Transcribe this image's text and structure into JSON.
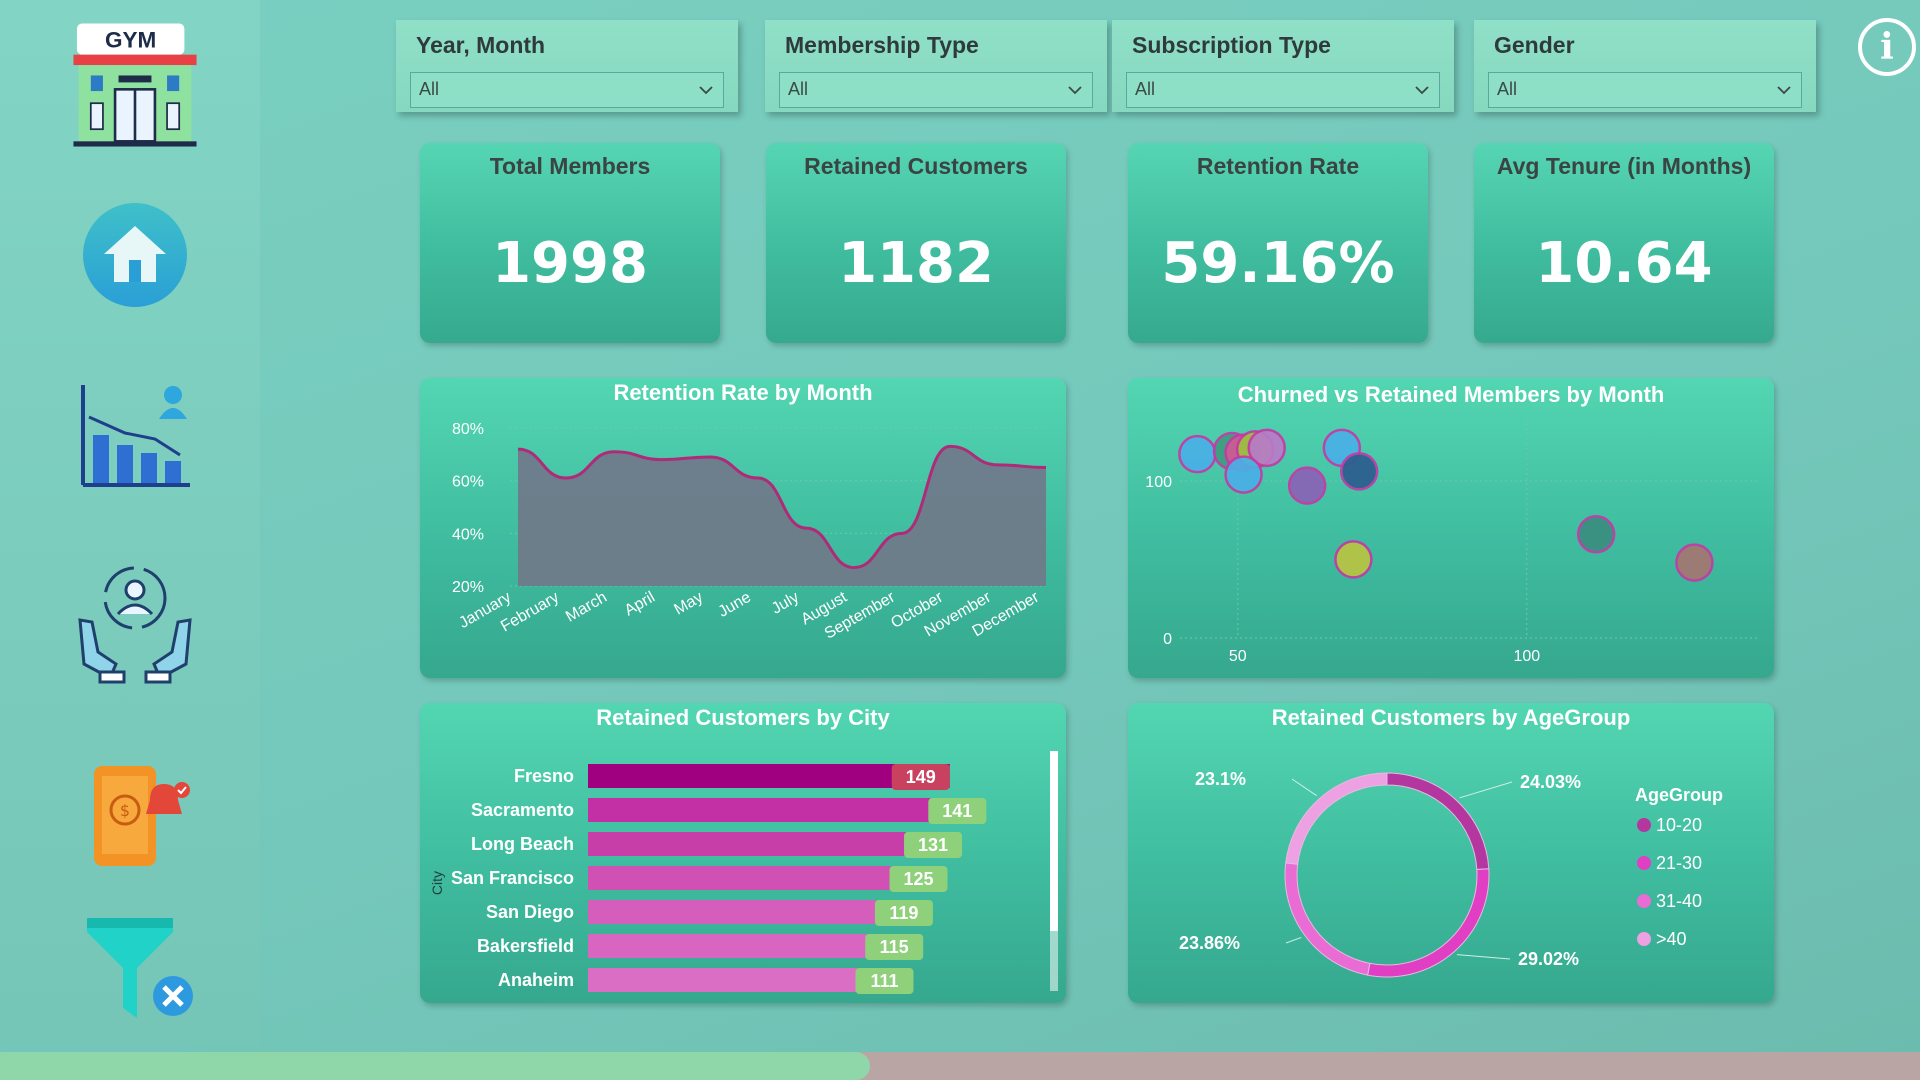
{
  "sidebar": {
    "logo_text": "GYM",
    "items": [
      {
        "icon": "home-icon"
      },
      {
        "icon": "analytics-chart-icon"
      },
      {
        "icon": "retention-hands-icon"
      },
      {
        "icon": "payment-phone-icon"
      },
      {
        "icon": "clear-filter-icon"
      }
    ]
  },
  "filters": [
    {
      "label": "Year, Month",
      "value": "All"
    },
    {
      "label": "Membership Type",
      "value": "All"
    },
    {
      "label": "Subscription Type",
      "value": "All"
    },
    {
      "label": "Gender",
      "value": "All"
    }
  ],
  "kpis": [
    {
      "label": "Total Members",
      "value": "1998"
    },
    {
      "label": "Retained Customers",
      "value": "1182"
    },
    {
      "label": "Retention Rate",
      "value": "59.16%"
    },
    {
      "label": "Avg Tenure (in Months)",
      "value": "10.64"
    }
  ],
  "info_icon": "info-icon",
  "colors": {
    "accent_teal": "#3fbc9e",
    "magenta": "#a0007f",
    "pink": "#d466c5",
    "line": "#b02a7a"
  },
  "chart_data": [
    {
      "type": "area",
      "title": "Retention Rate by Month",
      "categories": [
        "January",
        "February",
        "March",
        "April",
        "May",
        "June",
        "July",
        "August",
        "September",
        "October",
        "November",
        "December"
      ],
      "values": [
        72,
        61,
        71,
        68,
        69,
        61,
        42,
        27,
        40,
        73,
        66,
        65
      ],
      "yticks": [
        "80%",
        "60%",
        "40%",
        "20%"
      ],
      "ylim": [
        20,
        80
      ]
    },
    {
      "type": "scatter",
      "title": "Churned vs Retained Members by Month",
      "xticks": [
        "50",
        "100"
      ],
      "yticks": [
        "100",
        "0"
      ],
      "xlim": [
        40,
        140
      ],
      "ylim": [
        0,
        140
      ],
      "points": [
        {
          "x": 43,
          "y": 117,
          "color": "#4ab0e6"
        },
        {
          "x": 49,
          "y": 119,
          "color": "#3e9c7f"
        },
        {
          "x": 51,
          "y": 118,
          "color": "#d05a94"
        },
        {
          "x": 53,
          "y": 120,
          "color": "#9bc23e"
        },
        {
          "x": 55,
          "y": 121,
          "color": "#b87bc8"
        },
        {
          "x": 51,
          "y": 104,
          "color": "#4ab0e6"
        },
        {
          "x": 62,
          "y": 97,
          "color": "#8a63b7"
        },
        {
          "x": 68,
          "y": 121,
          "color": "#4ab0e6"
        },
        {
          "x": 71,
          "y": 106,
          "color": "#2c5d8f"
        },
        {
          "x": 70,
          "y": 50,
          "color": "#b8c440"
        },
        {
          "x": 112,
          "y": 66,
          "color": "#3b8e7f"
        },
        {
          "x": 129,
          "y": 48,
          "color": "#a47671"
        }
      ]
    },
    {
      "type": "bar",
      "title": "Retained Customers by City",
      "ylabel": "City",
      "categories": [
        "Fresno",
        "Sacramento",
        "Long Beach",
        "San Francisco",
        "San Diego",
        "Bakersfield",
        "Anaheim"
      ],
      "values": [
        149,
        141,
        131,
        125,
        119,
        115,
        111
      ],
      "xlim": [
        0,
        160
      ]
    },
    {
      "type": "pie",
      "title": "Retained Customers by AgeGroup",
      "legend_title": "AgeGroup",
      "labels": [
        "10-20",
        "21-30",
        "31-40",
        ">40"
      ],
      "values": [
        24.03,
        29.02,
        23.86,
        23.1
      ],
      "value_labels": [
        "24.03%",
        "29.02%",
        "23.86%",
        "23.1%"
      ],
      "colors": [
        "#b3379f",
        "#e03fc3",
        "#e96bd4",
        "#eda0e2"
      ],
      "legend_placement": "right"
    }
  ]
}
